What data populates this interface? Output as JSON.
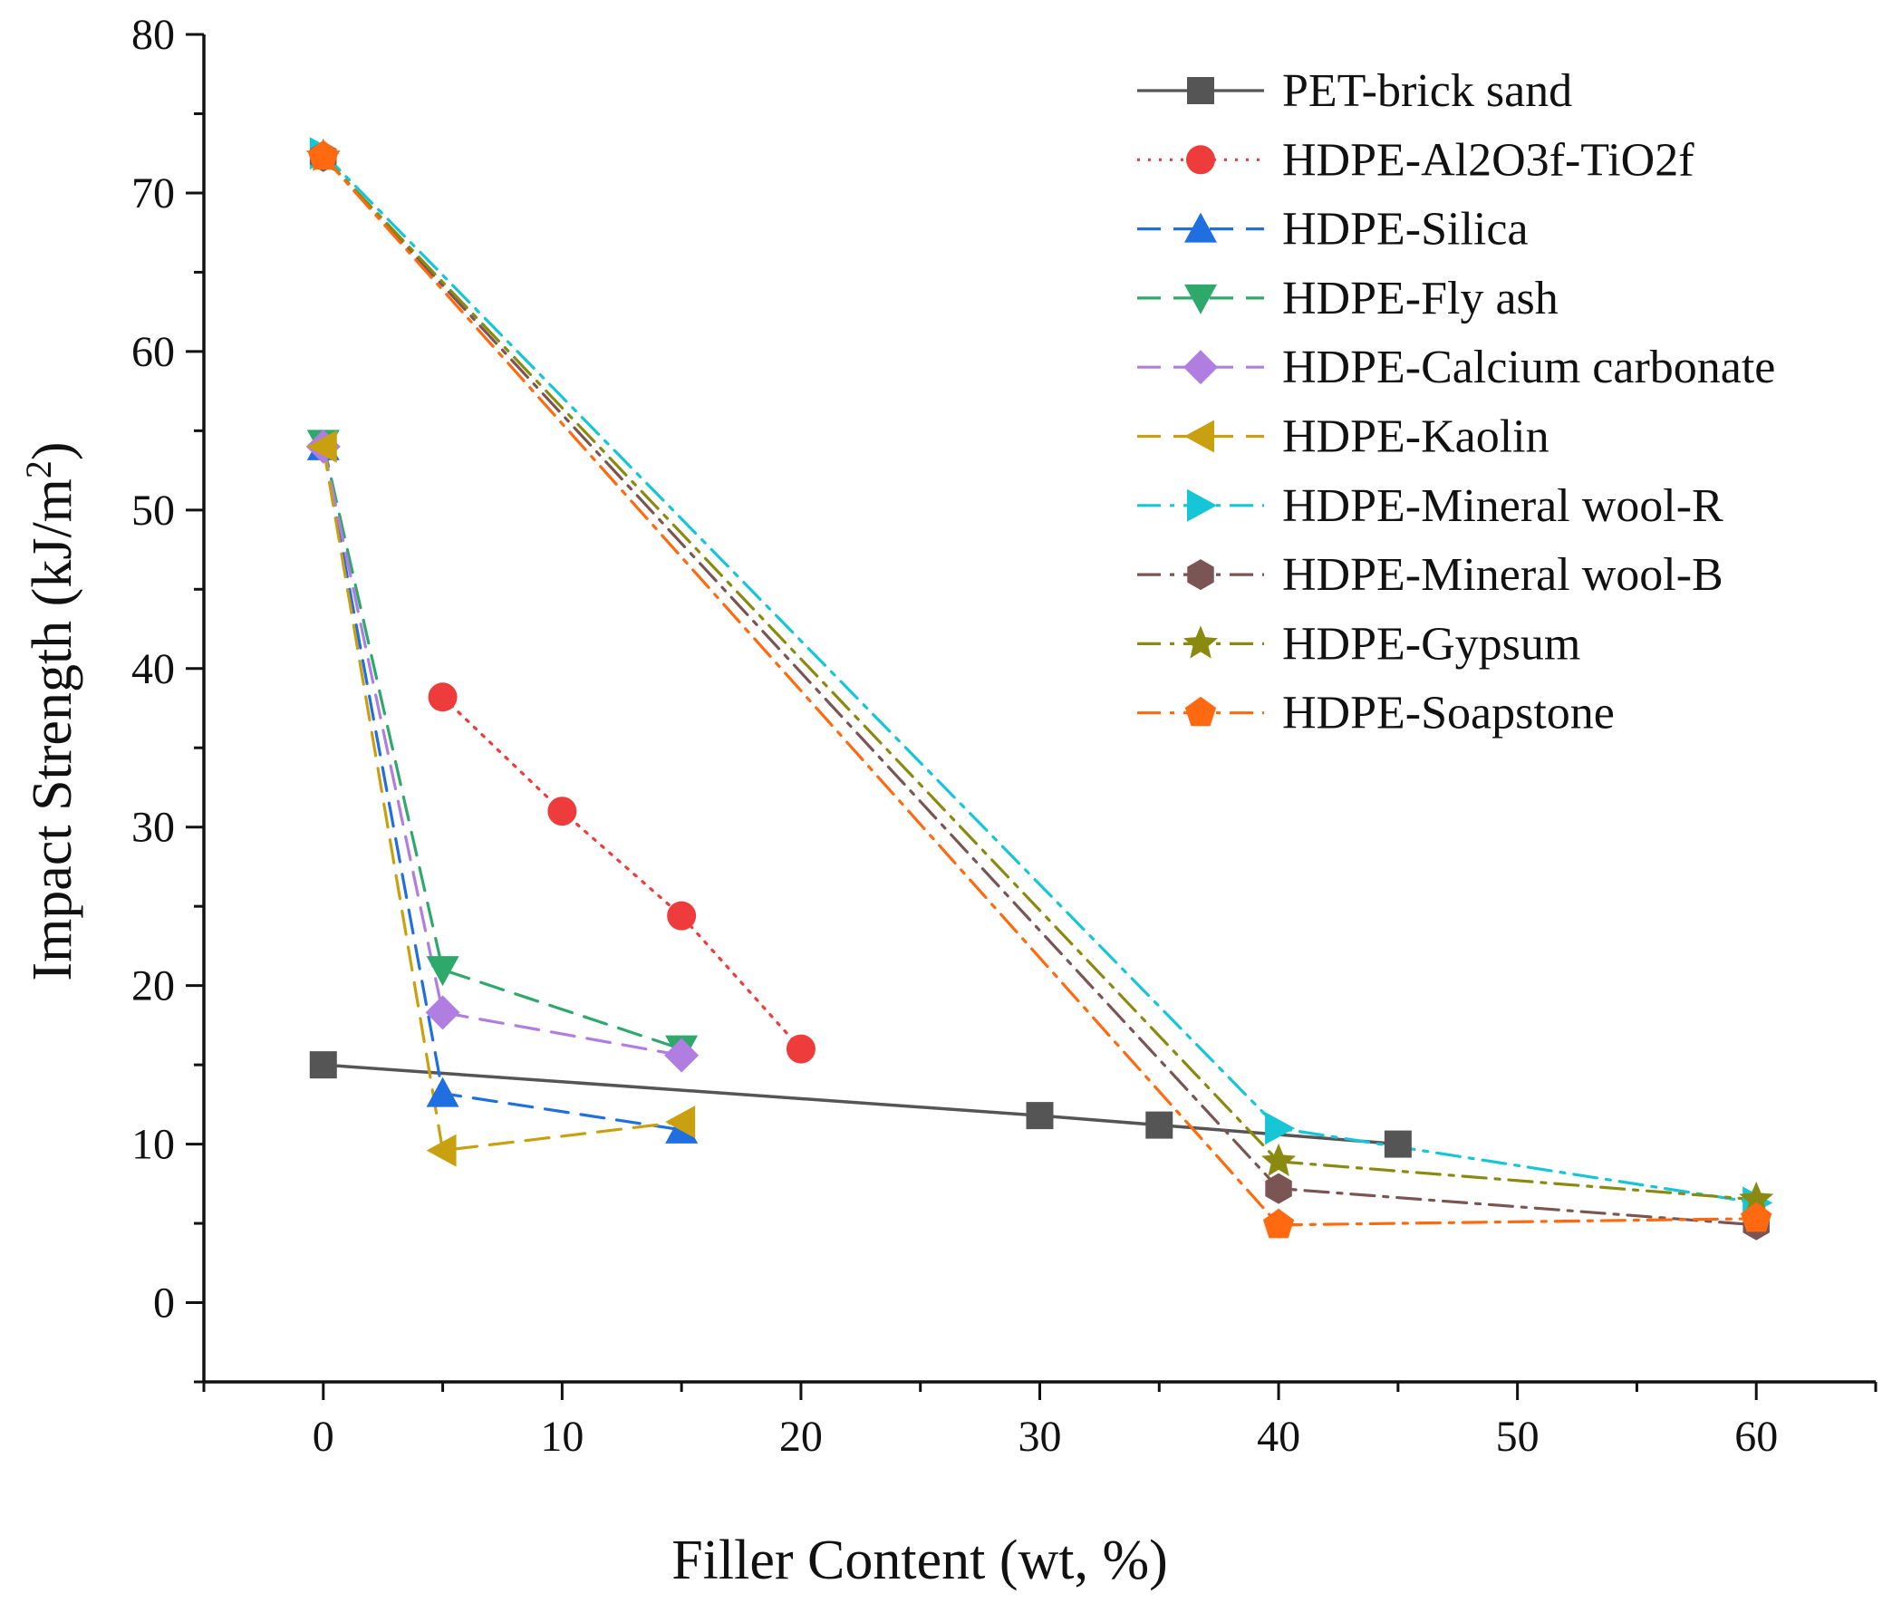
{
  "chart_data": {
    "type": "line",
    "title": "",
    "xlabel": "Filler Content (wt, %)",
    "ylabel_main": "Impact Strength (kJ/m",
    "ylabel_sup": "2",
    "ylabel_close": ")",
    "xlim": [
      -5,
      65
    ],
    "ylim": [
      -5,
      80
    ],
    "xticks": [
      0,
      10,
      20,
      30,
      40,
      50,
      60
    ],
    "yticks": [
      0,
      10,
      20,
      30,
      40,
      50,
      60,
      70,
      80
    ],
    "xtick_labels": [
      "0",
      "10",
      "20",
      "30",
      "40",
      "50",
      "60"
    ],
    "ytick_labels": [
      "0",
      "10",
      "20",
      "30",
      "40",
      "50",
      "60",
      "70",
      "80"
    ],
    "legend_position": "top-right",
    "series": [
      {
        "name": "PET-brick sand",
        "color": "#555555",
        "marker": "square",
        "dash": "solid",
        "x": [
          0,
          30,
          35,
          45
        ],
        "y": [
          15.0,
          11.8,
          11.2,
          10.0
        ]
      },
      {
        "name": "HDPE-Al2O3f-TiO2f",
        "color": "#ee3b3b",
        "marker": "circle",
        "dash": "dot",
        "x": [
          5,
          10,
          15,
          20
        ],
        "y": [
          38.2,
          31.0,
          24.4,
          16.0
        ]
      },
      {
        "name": "HDPE-Silica",
        "color": "#1f6fe0",
        "marker": "triangle-up",
        "dash": "dash",
        "x": [
          0,
          5,
          15
        ],
        "y": [
          54.0,
          13.2,
          10.9
        ]
      },
      {
        "name": "HDPE-Fly ash",
        "color": "#2ea86b",
        "marker": "triangle-down",
        "dash": "dash",
        "x": [
          0,
          5,
          15
        ],
        "y": [
          54.2,
          21.0,
          16.0
        ]
      },
      {
        "name": "HDPE-Calcium carbonate",
        "color": "#b07ee0",
        "marker": "diamond",
        "dash": "dash",
        "x": [
          0,
          5,
          15
        ],
        "y": [
          54.0,
          18.3,
          15.6
        ]
      },
      {
        "name": "HDPE-Kaolin",
        "color": "#c9a00f",
        "marker": "triangle-left",
        "dash": "dash",
        "x": [
          0,
          5,
          15
        ],
        "y": [
          54.0,
          9.6,
          11.4
        ]
      },
      {
        "name": "HDPE-Mineral wool-R",
        "color": "#17c6d6",
        "marker": "triangle-right",
        "dash": "dashdot",
        "x": [
          0,
          40,
          60
        ],
        "y": [
          72.5,
          11.0,
          6.3
        ]
      },
      {
        "name": "HDPE-Mineral wool-B",
        "color": "#7b5454",
        "marker": "hexagon",
        "dash": "dashdot",
        "x": [
          0,
          40,
          60
        ],
        "y": [
          72.3,
          7.2,
          4.9
        ]
      },
      {
        "name": "HDPE-Gypsum",
        "color": "#8a8a10",
        "marker": "star",
        "dash": "dashdot",
        "x": [
          0,
          40,
          60
        ],
        "y": [
          72.3,
          8.9,
          6.5
        ]
      },
      {
        "name": "HDPE-Soapstone",
        "color": "#ff6a10",
        "marker": "pentagon",
        "dash": "dashdot",
        "x": [
          0,
          40,
          60
        ],
        "y": [
          72.3,
          4.9,
          5.3
        ]
      }
    ]
  }
}
